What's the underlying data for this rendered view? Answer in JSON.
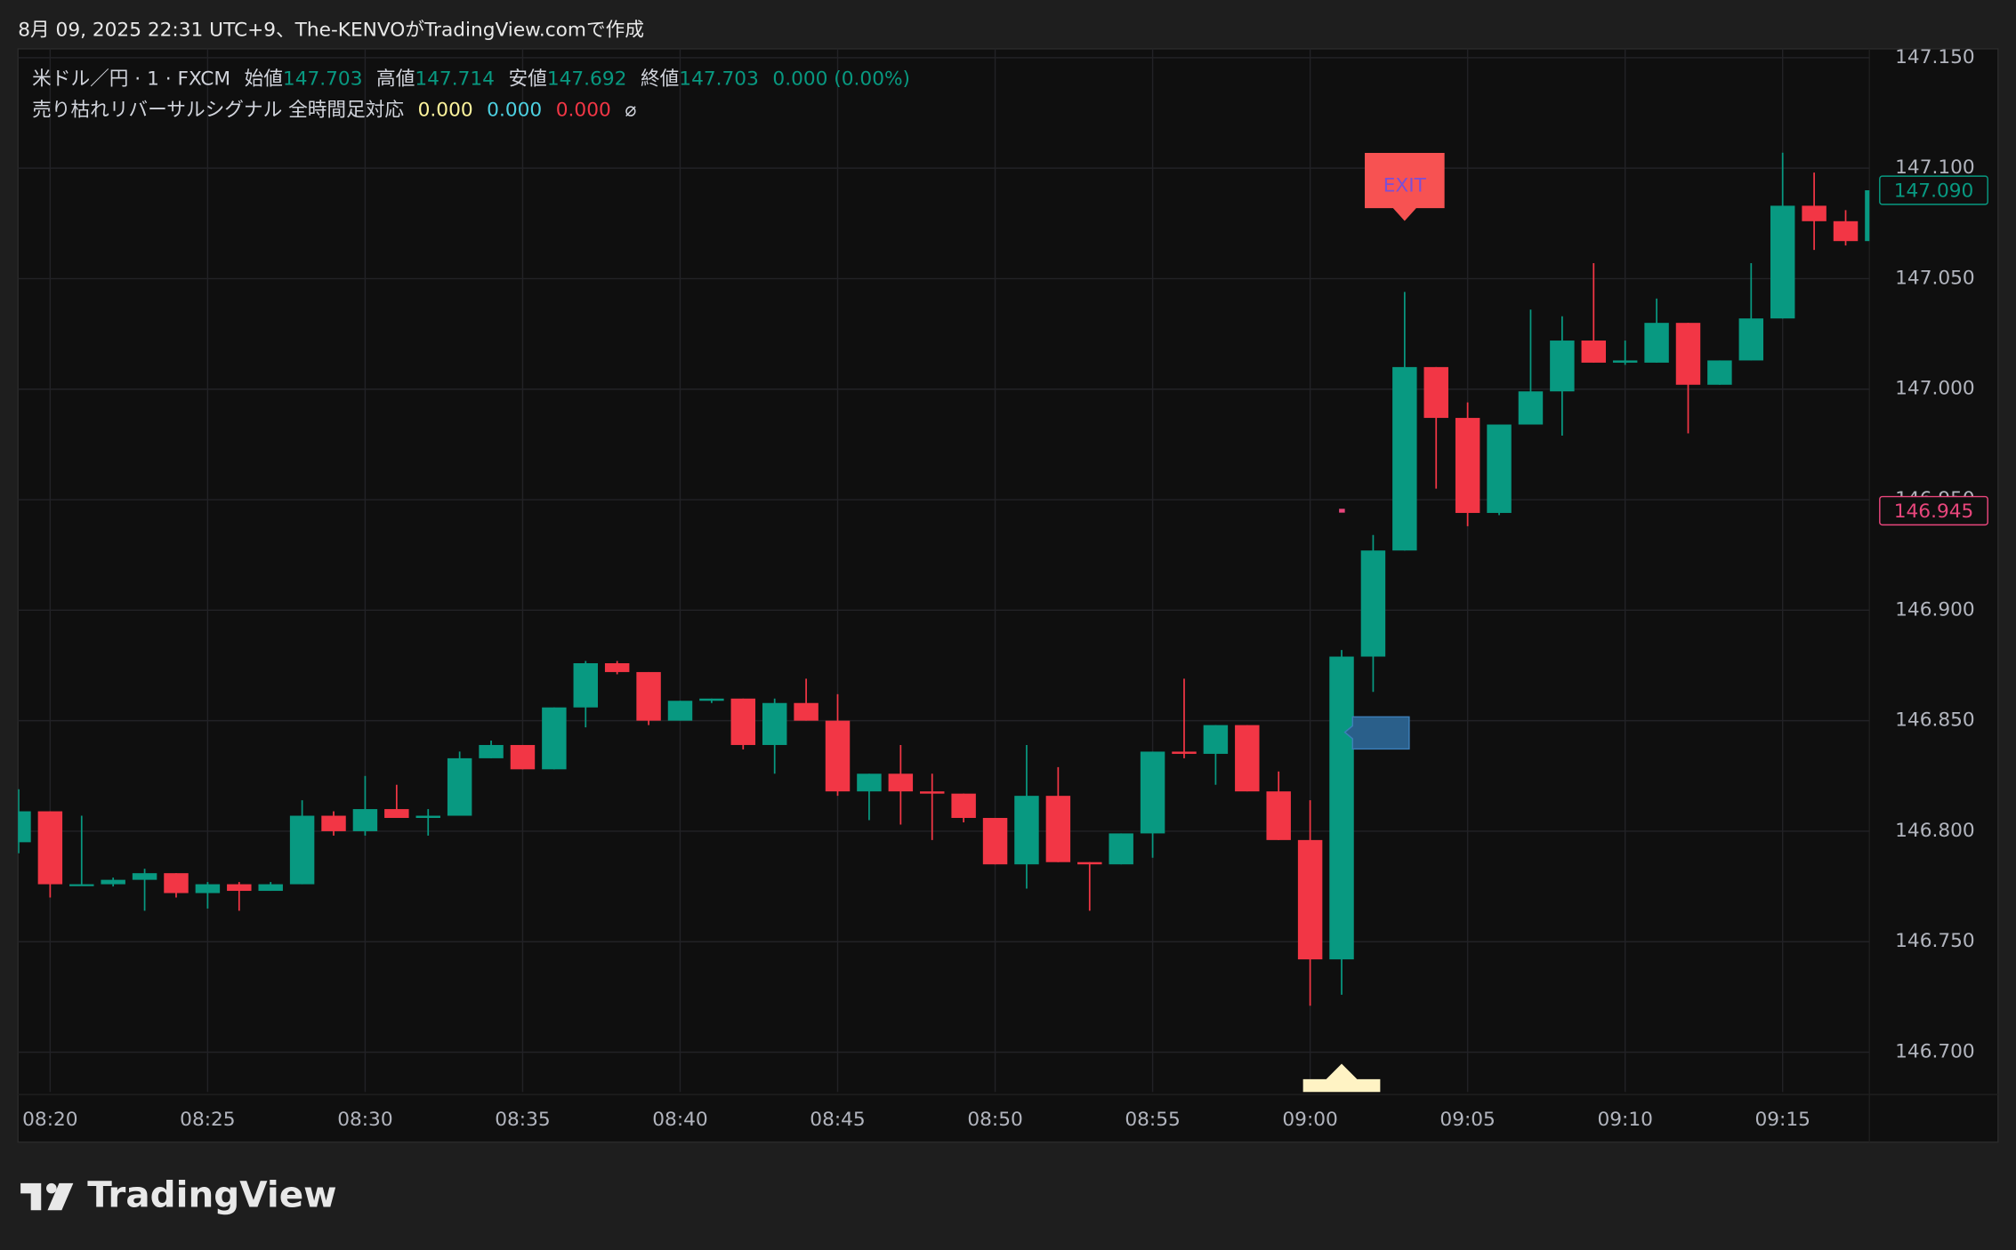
{
  "header": {
    "caption": "8月 09, 2025 22:31 UTC+9、The-KENVOがTradingView.comで作成"
  },
  "chart_data": {
    "type": "candlestick",
    "symbol": "米ドル／円 · 1 · FXCM",
    "quote": [
      {
        "label": "始値",
        "value": "147.703"
      },
      {
        "label": "高値",
        "value": "147.714"
      },
      {
        "label": "安値",
        "value": "147.692"
      },
      {
        "label": "終値",
        "value": "147.703"
      }
    ],
    "change": "0.000 (0.00%)",
    "indicator": {
      "name": "売り枯れリバーサルシグナル 全時間足対応",
      "values": [
        {
          "text": "0.000",
          "color": "#fff59d"
        },
        {
          "text": "0.000",
          "color": "#4dd0e1"
        },
        {
          "text": "0.000",
          "color": "#f23645"
        }
      ],
      "symbol": "⌀"
    },
    "categories": [
      null,
      "08:20",
      null,
      null,
      null,
      null,
      "08:25",
      null,
      null,
      null,
      null,
      "08:30",
      null,
      null,
      null,
      null,
      "08:35",
      null,
      null,
      null,
      null,
      "08:40",
      null,
      null,
      null,
      null,
      "08:45",
      null,
      null,
      null,
      null,
      "08:50",
      null,
      null,
      null,
      null,
      "08:55",
      null,
      null,
      null,
      null,
      "09:00",
      null,
      null,
      null,
      null,
      "09:05",
      null,
      null,
      null,
      null,
      "09:10",
      null,
      null,
      null,
      null,
      "09:15",
      null,
      null,
      null
    ],
    "open": [
      146.795,
      146.809,
      146.776,
      146.776,
      146.778,
      146.781,
      146.772,
      146.776,
      146.773,
      146.776,
      146.807,
      146.8,
      146.81,
      146.806,
      146.807,
      146.833,
      146.839,
      146.828,
      146.856,
      146.876,
      146.872,
      146.85,
      146.859,
      146.86,
      146.839,
      146.858,
      146.85,
      146.818,
      146.826,
      146.818,
      146.817,
      146.806,
      146.785,
      146.816,
      146.786,
      146.785,
      146.799,
      146.836,
      146.835,
      146.848,
      146.818,
      146.796,
      146.742,
      146.879,
      146.927,
      147.01,
      146.987,
      146.944,
      146.984,
      146.999,
      147.022,
      147.012,
      147.012,
      147.03,
      147.002,
      147.013,
      147.032,
      147.083,
      147.076,
      147.067
    ],
    "high": [
      146.819,
      146.809,
      146.807,
      146.779,
      146.783,
      146.781,
      146.777,
      146.777,
      146.777,
      146.814,
      146.809,
      146.825,
      146.821,
      146.81,
      146.836,
      146.841,
      146.839,
      146.856,
      146.877,
      146.877,
      146.872,
      146.859,
      146.86,
      146.86,
      146.86,
      146.869,
      146.862,
      146.826,
      146.839,
      146.826,
      146.817,
      146.806,
      146.839,
      146.829,
      146.786,
      146.799,
      146.836,
      146.869,
      146.848,
      146.848,
      146.827,
      146.814,
      146.882,
      146.934,
      147.044,
      147.01,
      146.994,
      146.984,
      147.036,
      147.033,
      147.057,
      147.022,
      147.041,
      147.03,
      147.013,
      147.057,
      147.107,
      147.098,
      147.081,
      147.09
    ],
    "low": [
      146.79,
      146.77,
      146.776,
      146.775,
      146.764,
      146.77,
      146.765,
      146.764,
      146.773,
      146.776,
      146.798,
      146.798,
      146.806,
      146.798,
      146.807,
      146.833,
      146.828,
      146.828,
      146.847,
      146.871,
      146.848,
      146.85,
      146.858,
      146.837,
      146.826,
      146.85,
      146.816,
      146.805,
      146.803,
      146.796,
      146.804,
      146.785,
      146.774,
      146.786,
      146.764,
      146.785,
      146.788,
      146.833,
      146.821,
      146.818,
      146.796,
      146.721,
      146.726,
      146.863,
      146.927,
      146.955,
      146.938,
      146.943,
      146.984,
      146.979,
      147.012,
      147.011,
      147.012,
      146.98,
      147.002,
      147.013,
      147.032,
      147.063,
      147.065,
      147.059
    ],
    "close": [
      146.809,
      146.776,
      146.776,
      146.778,
      146.781,
      146.772,
      146.776,
      146.773,
      146.776,
      146.807,
      146.8,
      146.81,
      146.806,
      146.807,
      146.833,
      146.839,
      146.828,
      146.856,
      146.876,
      146.872,
      146.85,
      146.859,
      146.86,
      146.839,
      146.858,
      146.85,
      146.818,
      146.826,
      146.818,
      146.817,
      146.806,
      146.785,
      146.816,
      146.786,
      146.785,
      146.799,
      146.836,
      146.835,
      146.848,
      146.818,
      146.796,
      146.742,
      146.879,
      146.927,
      147.01,
      146.987,
      146.944,
      146.984,
      146.999,
      147.022,
      147.012,
      147.013,
      147.03,
      147.002,
      147.013,
      147.032,
      147.083,
      147.076,
      147.067,
      147.09
    ],
    "up_color": "#089981",
    "down_color": "#f23645",
    "ylim": [
      146.682,
      147.154
    ],
    "yticks": [
      {
        "value": 146.7,
        "label": "146.700"
      },
      {
        "value": 146.75,
        "label": "146.750"
      },
      {
        "value": 146.8,
        "label": "146.800"
      },
      {
        "value": 146.85,
        "label": "146.850"
      },
      {
        "value": 146.9,
        "label": "146.900"
      },
      {
        "value": 146.95,
        "label": "146.950"
      },
      {
        "value": 147,
        "label": "147.000"
      },
      {
        "value": 147.05,
        "label": "147.050"
      },
      {
        "value": 147.1,
        "label": "147.100"
      },
      {
        "value": 147.15,
        "label": "147.150"
      }
    ],
    "grid": true,
    "last_price": {
      "value": 147.09,
      "label": "147.090"
    },
    "level": 146.945,
    "level_color": "#e8467c",
    "annotations": [
      {
        "text": "EXIT"
      }
    ]
  },
  "footer": {
    "brand": "TradingView"
  }
}
